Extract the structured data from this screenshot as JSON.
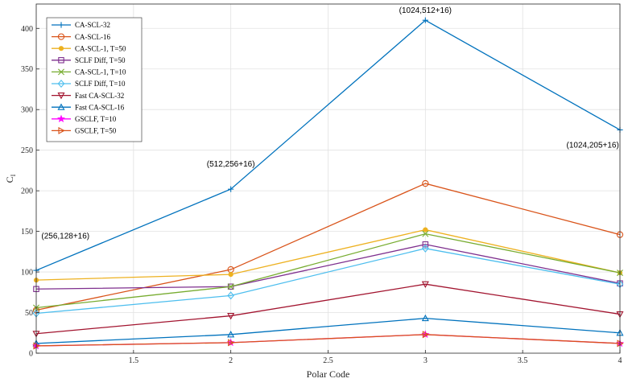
{
  "chart_data": {
    "type": "line",
    "title": "",
    "xlabel": "Polar Code",
    "ylabel": "C",
    "ylabel_subscript": "I",
    "xlim": [
      1,
      4
    ],
    "ylim": [
      0,
      430
    ],
    "xticks": [
      1.5,
      2,
      2.5,
      3,
      3.5,
      4
    ],
    "xtick_labels": [
      "1.5",
      "2",
      "2.5",
      "3",
      "3.5",
      "4"
    ],
    "yticks": [
      0,
      50,
      100,
      150,
      200,
      250,
      300,
      350,
      400
    ],
    "ytick_labels": [
      "0",
      "50",
      "100",
      "150",
      "200",
      "250",
      "300",
      "350",
      "400"
    ],
    "grid": true,
    "legend_position": "top-left",
    "x": [
      1,
      2,
      3,
      4
    ],
    "series": [
      {
        "name": "CA-SCL-32",
        "values": [
          102,
          202,
          410,
          275
        ],
        "color": "#0072BD",
        "marker": "plus"
      },
      {
        "name": "CA-SCL-16",
        "values": [
          53,
          103,
          209,
          146
        ],
        "color": "#D95319",
        "marker": "circle"
      },
      {
        "name": "CA-SCL-1, T=50",
        "values": [
          90,
          97,
          152,
          99
        ],
        "color": "#EDB120",
        "marker": "dot"
      },
      {
        "name": "SCLF Diff, T=50",
        "values": [
          79,
          82,
          134,
          86
        ],
        "color": "#7E2F8E",
        "marker": "square"
      },
      {
        "name": "CA-SCL-1, T=10",
        "values": [
          56,
          82,
          147,
          99
        ],
        "color": "#77AC30",
        "marker": "x"
      },
      {
        "name": "SCLF Diff, T=10",
        "values": [
          49,
          71,
          129,
          85
        ],
        "color": "#4DBEEE",
        "marker": "diamond"
      },
      {
        "name": "Fast CA-SCL-32",
        "values": [
          24,
          46,
          85,
          48
        ],
        "color": "#A2142F",
        "marker": "triangle-down"
      },
      {
        "name": "Fast CA-SCL-16",
        "values": [
          12,
          23,
          43,
          25
        ],
        "color": "#0072BD",
        "marker": "triangle-up"
      },
      {
        "name": "GSCLF, T=10",
        "values": [
          9,
          13,
          23,
          12
        ],
        "color": "#FF00FF",
        "marker": "star"
      },
      {
        "name": "GSCLF, T=50",
        "values": [
          9,
          13,
          23,
          12
        ],
        "color": "#D95319",
        "marker": "triangle-right"
      }
    ],
    "annotations": [
      {
        "text": "(256,128+16)",
        "x": 1.15,
        "y": 141
      },
      {
        "text": "(512,256+16)",
        "x": 2.0,
        "y": 230
      },
      {
        "text": "(1024,512+16)",
        "x": 3.0,
        "y": 419
      },
      {
        "text": "(1024,205+16)",
        "x": 3.86,
        "y": 253
      }
    ]
  }
}
